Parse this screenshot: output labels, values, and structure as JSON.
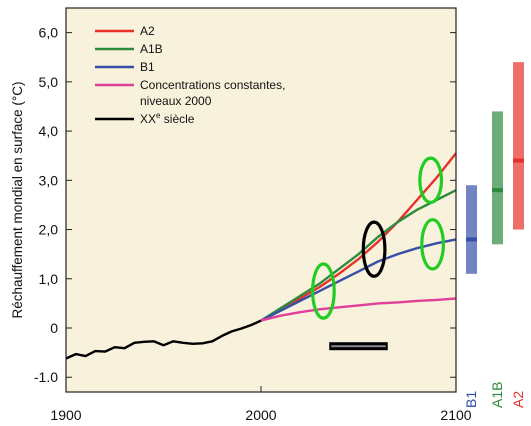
{
  "chart_data": {
    "type": "line",
    "ylabel": "Réchauffement mondial en surface (°C)",
    "xlim": [
      1900,
      2100
    ],
    "ylim": [
      -1.3,
      6.5
    ],
    "x_ticks": [
      1900,
      2000,
      2100
    ],
    "y_ticks": [
      {
        "v": 6.0,
        "label": "6,0"
      },
      {
        "v": 5.0,
        "label": "5,0"
      },
      {
        "v": 4.0,
        "label": "4,0"
      },
      {
        "v": 3.0,
        "label": "3,0"
      },
      {
        "v": 2.0,
        "label": "2,0"
      },
      {
        "v": 1.0,
        "label": "1,0"
      },
      {
        "v": 0.0,
        "label": "0"
      },
      {
        "v": -1.0,
        "label": "-1.0"
      }
    ],
    "legend_position": "top-left",
    "series": [
      {
        "name": "A2",
        "color": "#e8312a",
        "x": [
          2000,
          2010,
          2020,
          2030,
          2040,
          2050,
          2060,
          2070,
          2080,
          2090,
          2100
        ],
        "y": [
          0.15,
          0.38,
          0.6,
          0.83,
          1.1,
          1.4,
          1.75,
          2.15,
          2.6,
          3.05,
          3.55
        ]
      },
      {
        "name": "A1B",
        "color": "#2e8b3e",
        "x": [
          2000,
          2010,
          2020,
          2030,
          2040,
          2050,
          2060,
          2070,
          2080,
          2090,
          2100
        ],
        "y": [
          0.15,
          0.4,
          0.65,
          0.9,
          1.2,
          1.5,
          1.85,
          2.15,
          2.4,
          2.6,
          2.8
        ]
      },
      {
        "name": "B1",
        "color": "#3650a8",
        "x": [
          2000,
          2010,
          2020,
          2030,
          2040,
          2050,
          2060,
          2070,
          2080,
          2090,
          2100
        ],
        "y": [
          0.15,
          0.35,
          0.55,
          0.75,
          0.95,
          1.15,
          1.35,
          1.5,
          1.62,
          1.72,
          1.8
        ]
      },
      {
        "name": "Concentrations constantes, niveaux 2000",
        "name_lines": [
          "Concentrations constantes,",
          "niveaux 2000"
        ],
        "color": "#e0409a",
        "x": [
          2000,
          2010,
          2020,
          2030,
          2040,
          2050,
          2060,
          2070,
          2080,
          2090,
          2100
        ],
        "y": [
          0.15,
          0.25,
          0.32,
          0.38,
          0.42,
          0.46,
          0.5,
          0.52,
          0.55,
          0.57,
          0.6
        ]
      },
      {
        "name": "XXe siècle",
        "name_base": "XX",
        "name_sup": "e",
        "name_rest": " siècle",
        "color": "#000000",
        "x": [
          1900,
          1905,
          1910,
          1915,
          1920,
          1925,
          1930,
          1935,
          1940,
          1945,
          1950,
          1955,
          1960,
          1965,
          1970,
          1975,
          1980,
          1985,
          1990,
          1995,
          2000
        ],
        "y": [
          -0.62,
          -0.56,
          -0.54,
          -0.5,
          -0.45,
          -0.42,
          -0.38,
          -0.33,
          -0.25,
          -0.3,
          -0.32,
          -0.3,
          -0.27,
          -0.35,
          -0.28,
          -0.3,
          -0.13,
          -0.1,
          0.02,
          0.03,
          0.15
        ]
      }
    ],
    "range_bars": [
      {
        "label": "B1",
        "color": "#3650a8",
        "min": 1.1,
        "best": 1.8,
        "max": 2.9
      },
      {
        "label": "A1B",
        "color": "#2e8b3e",
        "min": 1.7,
        "best": 2.8,
        "max": 4.4
      },
      {
        "label": "A2",
        "color": "#e8312a",
        "min": 2.0,
        "best": 3.4,
        "max": 5.4
      }
    ],
    "annotations": [
      {
        "type": "ellipse",
        "color": "#22cc22",
        "x": 2032,
        "y": 0.75,
        "rx_years": 4,
        "ry_c": 0.55
      },
      {
        "type": "ellipse",
        "color": "#000000",
        "x": 2058,
        "y": 1.6,
        "rx_years": 4,
        "ry_c": 0.55
      },
      {
        "type": "ellipse",
        "color": "#22cc22",
        "x": 2087,
        "y": 3.0,
        "rx_years": 4,
        "ry_c": 0.45
      },
      {
        "type": "ellipse",
        "color": "#22cc22",
        "x": 2088,
        "y": 1.7,
        "rx_years": 4,
        "ry_c": 0.5
      },
      {
        "type": "segment",
        "color": "#000000",
        "x0": 2035,
        "x1": 2065,
        "y": -0.37
      }
    ]
  }
}
